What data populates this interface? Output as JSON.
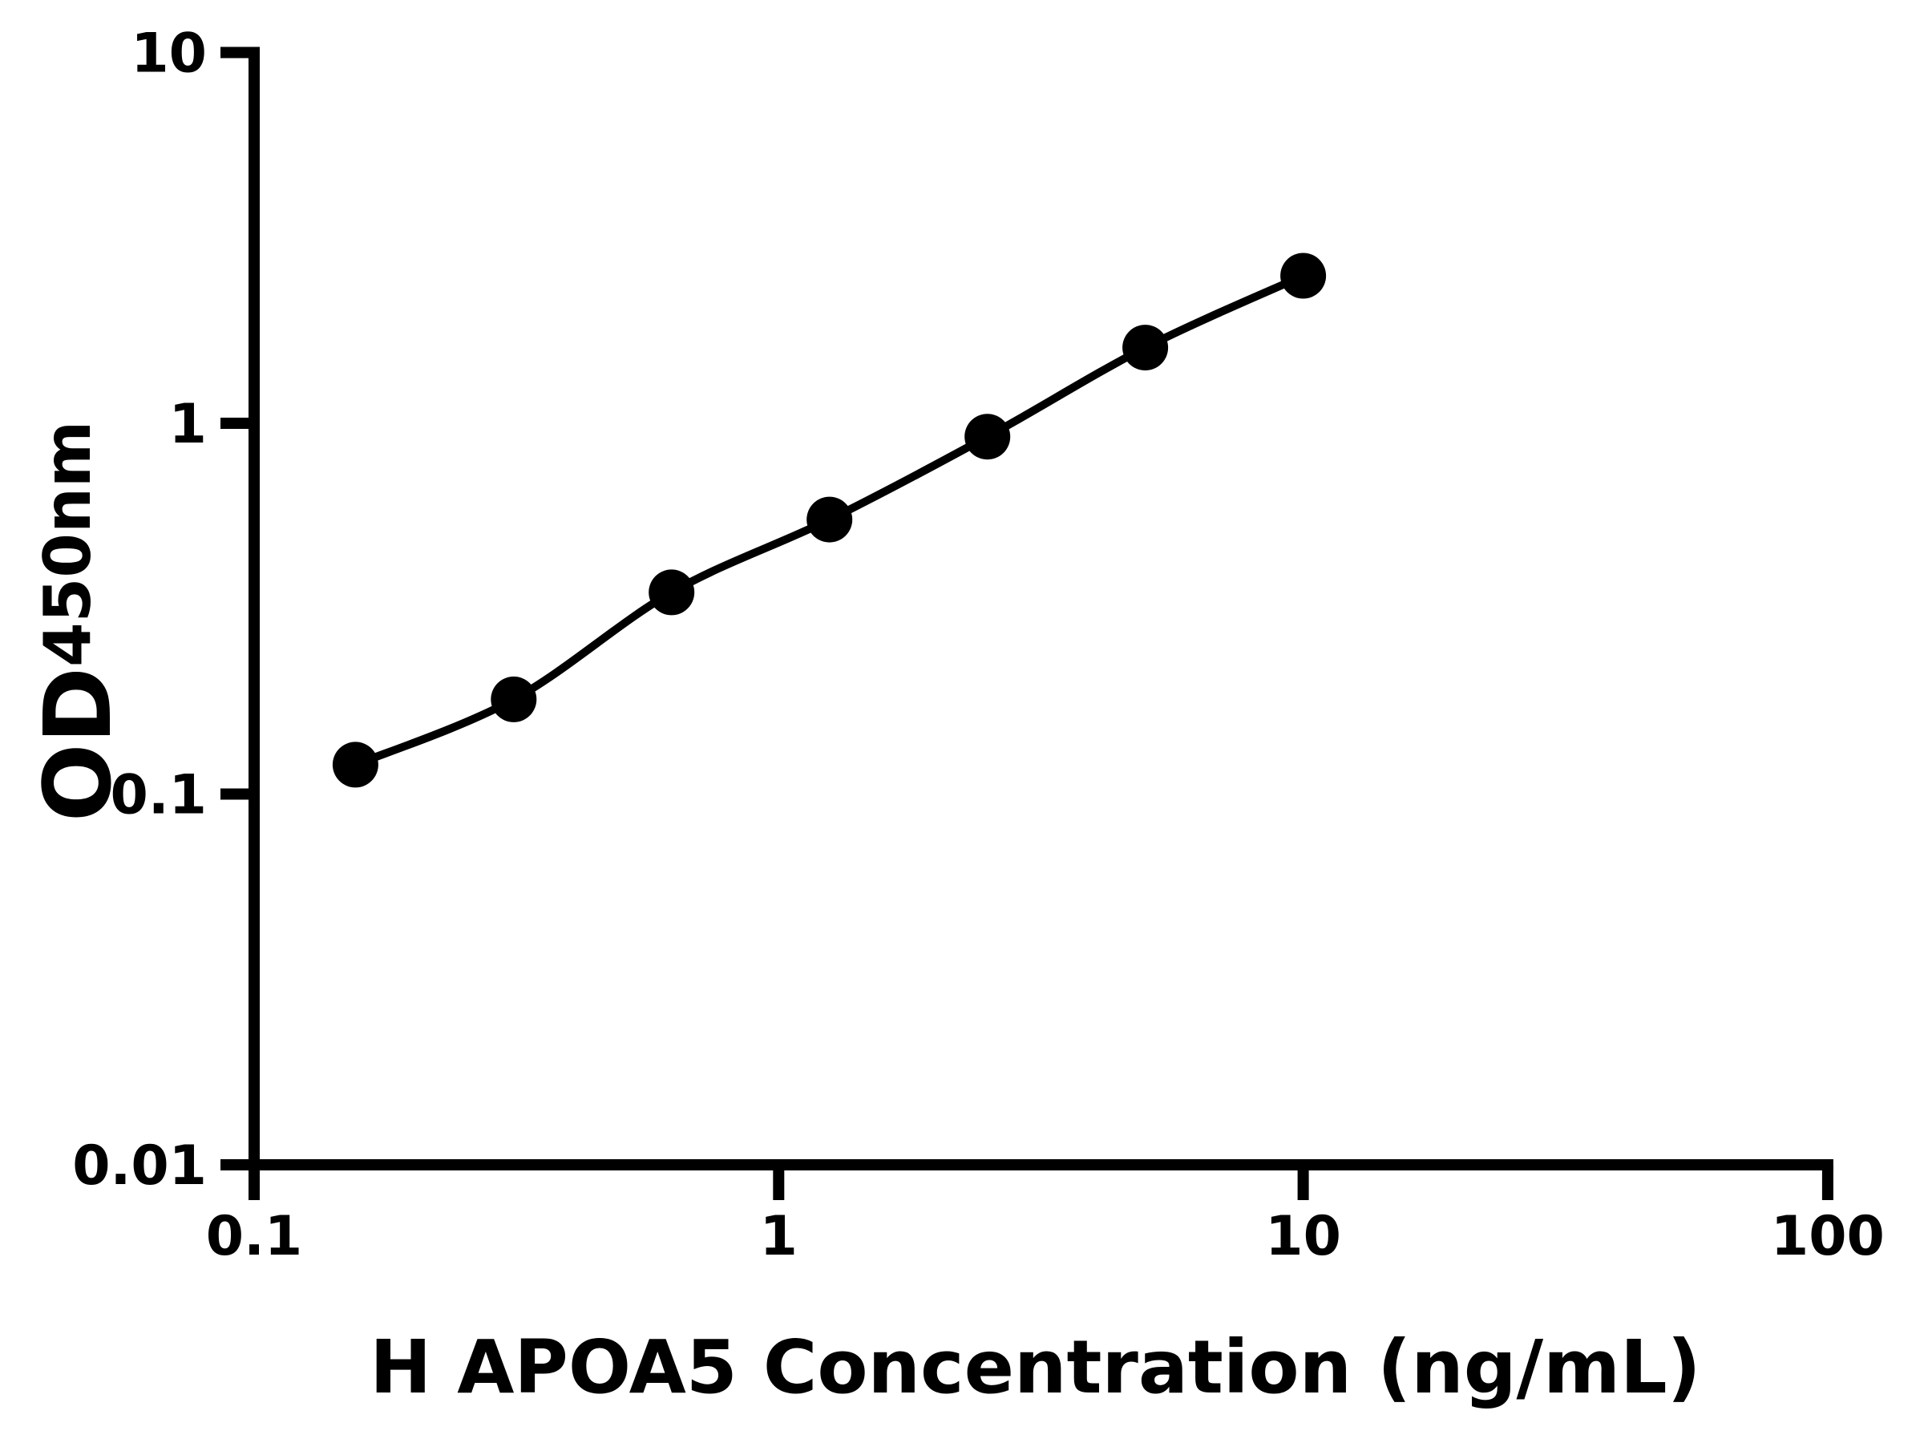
{
  "figure": {
    "background_color": "#ffffff",
    "foreground_color": "#000000"
  },
  "chart_data": {
    "type": "scatter",
    "subtype": "line-connected standard curve (ELISA)",
    "title": "",
    "xlabel": "H APOA5 Concentration (ng/mL)",
    "ylabel_main": "OD",
    "ylabel_sub": "450nm",
    "x_scale": "log",
    "y_scale": "log",
    "xlim": [
      0.1,
      100
    ],
    "ylim": [
      0.01,
      10
    ],
    "grid": false,
    "legend": "none",
    "x_ticks": [
      {
        "value": 0.1,
        "label": "0.1"
      },
      {
        "value": 1,
        "label": "1"
      },
      {
        "value": 10,
        "label": "10"
      },
      {
        "value": 100,
        "label": "100"
      }
    ],
    "y_ticks": [
      {
        "value": 0.01,
        "label": "0.01"
      },
      {
        "value": 0.1,
        "label": "0.1"
      },
      {
        "value": 1,
        "label": "1"
      },
      {
        "value": 10,
        "label": "10"
      }
    ],
    "series": [
      {
        "name": "standard-curve",
        "marker": "filled-circle",
        "color": "#000000",
        "points": [
          {
            "x": 0.156,
            "y": 0.12
          },
          {
            "x": 0.3125,
            "y": 0.18
          },
          {
            "x": 0.625,
            "y": 0.35
          },
          {
            "x": 1.25,
            "y": 0.55
          },
          {
            "x": 2.5,
            "y": 0.92
          },
          {
            "x": 5,
            "y": 1.6
          },
          {
            "x": 10,
            "y": 2.5
          }
        ]
      }
    ]
  }
}
